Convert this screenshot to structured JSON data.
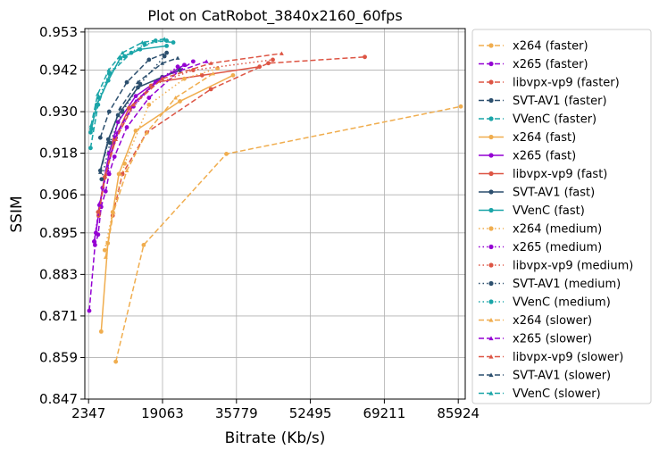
{
  "chart_data": {
    "type": "line",
    "title": "Plot on CatRobot_3840x2160_60fps",
    "xlabel": "Bitrate (Kb/s)",
    "ylabel": "SSIM",
    "xlim": [
      1500,
      87500
    ],
    "ylim": [
      0.847,
      0.954
    ],
    "xticks": [
      2347,
      19063,
      35779,
      52495,
      69211,
      85924
    ],
    "yticks": [
      0.847,
      0.859,
      0.871,
      0.883,
      0.895,
      0.906,
      0.918,
      0.93,
      0.942,
      0.953
    ],
    "grid": true,
    "legend_position": "right, outside plot",
    "series": [
      {
        "name": "x264 (faster)",
        "color": "#f0ad4e",
        "dash": "dashed",
        "marker": "circle",
        "points": [
          [
            8500,
            0.8578
          ],
          [
            14800,
            0.8915
          ],
          [
            33500,
            0.9178
          ],
          [
            86500,
            0.9315
          ]
        ]
      },
      {
        "name": "x265 (faster)",
        "color": "#9400d3",
        "dash": "dashed",
        "marker": "circle",
        "points": [
          [
            2500,
            0.8725
          ],
          [
            3800,
            0.8915
          ],
          [
            4500,
            0.8945
          ],
          [
            5200,
            0.9025
          ],
          [
            6200,
            0.907
          ],
          [
            7000,
            0.912
          ],
          [
            8200,
            0.917
          ],
          [
            11000,
            0.9255
          ],
          [
            16000,
            0.934
          ],
          [
            23000,
            0.942
          ],
          [
            26000,
            0.9445
          ]
        ]
      },
      {
        "name": "libvpx-vp9 (faster)",
        "color": "#dd5544",
        "dash": "dashed",
        "marker": "circle",
        "points": [
          [
            7800,
            0.9
          ],
          [
            10000,
            0.912
          ],
          [
            15500,
            0.924
          ],
          [
            30000,
            0.9365
          ],
          [
            43000,
            0.944
          ],
          [
            64800,
            0.9458
          ]
        ]
      },
      {
        "name": "SVT-AV1 (faster)",
        "color": "#2c4f6e",
        "dash": "dashed",
        "marker": "circle",
        "points": [
          [
            5000,
            0.9225
          ],
          [
            7000,
            0.93
          ],
          [
            11000,
            0.9385
          ],
          [
            16000,
            0.945
          ],
          [
            20000,
            0.947
          ]
        ]
      },
      {
        "name": "VVenC (faster)",
        "color": "#1aa5a8",
        "dash": "dashed",
        "marker": "circle",
        "points": [
          [
            2800,
            0.9195
          ],
          [
            4500,
            0.932
          ],
          [
            7200,
            0.941
          ],
          [
            12000,
            0.947
          ],
          [
            17500,
            0.9505
          ],
          [
            21500,
            0.95
          ]
        ]
      },
      {
        "name": "x264 (fast)",
        "color": "#f0ad4e",
        "dash": "solid",
        "marker": "circle",
        "points": [
          [
            5200,
            0.8665
          ],
          [
            6700,
            0.892
          ],
          [
            9200,
            0.912
          ],
          [
            13000,
            0.9245
          ],
          [
            23000,
            0.933
          ],
          [
            35000,
            0.9405
          ]
        ]
      },
      {
        "name": "x265 (fast)",
        "color": "#9400d3",
        "dash": "solid",
        "marker": "circle",
        "points": [
          [
            4000,
            0.895
          ],
          [
            5500,
            0.908
          ],
          [
            7000,
            0.918
          ],
          [
            9000,
            0.927
          ],
          [
            13000,
            0.9345
          ],
          [
            18000,
            0.939
          ],
          [
            24000,
            0.9435
          ]
        ]
      },
      {
        "name": "libvpx-vp9 (fast)",
        "color": "#dd5544",
        "dash": "solid",
        "marker": "circle",
        "points": [
          [
            4500,
            0.901
          ],
          [
            6000,
            0.911
          ],
          [
            8200,
            0.922
          ],
          [
            11500,
            0.931
          ],
          [
            17500,
            0.9385
          ],
          [
            28000,
            0.9405
          ],
          [
            41000,
            0.943
          ]
        ]
      },
      {
        "name": "SVT-AV1 (fast)",
        "color": "#2c4f6e",
        "dash": "solid",
        "marker": "circle",
        "points": [
          [
            5000,
            0.913
          ],
          [
            6800,
            0.922
          ],
          [
            9000,
            0.929
          ],
          [
            13500,
            0.937
          ],
          [
            19000,
            0.94
          ],
          [
            23000,
            0.942
          ]
        ]
      },
      {
        "name": "VVenC (fast)",
        "color": "#1aa5a8",
        "dash": "solid",
        "marker": "circle",
        "points": [
          [
            2800,
            0.924
          ],
          [
            4200,
            0.932
          ],
          [
            6800,
            0.939
          ],
          [
            9500,
            0.9455
          ],
          [
            14000,
            0.948
          ],
          [
            20000,
            0.949
          ]
        ]
      },
      {
        "name": "x264 (medium)",
        "color": "#f0ad4e",
        "dash": "dotted",
        "marker": "circle",
        "points": [
          [
            6000,
            0.89
          ],
          [
            7800,
            0.901
          ],
          [
            10500,
            0.915
          ],
          [
            16000,
            0.932
          ],
          [
            24000,
            0.9395
          ],
          [
            31500,
            0.9425
          ]
        ]
      },
      {
        "name": "x265 (medium)",
        "color": "#9400d3",
        "dash": "dotted",
        "marker": "circle",
        "points": [
          [
            3600,
            0.8925
          ],
          [
            4800,
            0.903
          ],
          [
            6500,
            0.913
          ],
          [
            8500,
            0.9225
          ],
          [
            12500,
            0.9315
          ],
          [
            17500,
            0.9385
          ],
          [
            22500,
            0.943
          ]
        ]
      },
      {
        "name": "libvpx-vp9 (medium)",
        "color": "#dd5544",
        "dash": "dotted",
        "marker": "circle",
        "points": [
          [
            4600,
            0.9
          ],
          [
            6000,
            0.911
          ],
          [
            8000,
            0.921
          ],
          [
            11500,
            0.931
          ],
          [
            16500,
            0.9375
          ],
          [
            26000,
            0.942
          ],
          [
            44000,
            0.945
          ]
        ]
      },
      {
        "name": "SVT-AV1 (medium)",
        "color": "#2c4f6e",
        "dash": "dotted",
        "marker": "circle",
        "points": [
          [
            5300,
            0.9105
          ],
          [
            7200,
            0.921
          ],
          [
            10000,
            0.93
          ],
          [
            14000,
            0.938
          ],
          [
            19500,
            0.946
          ]
        ]
      },
      {
        "name": "VVenC (medium)",
        "color": "#1aa5a8",
        "dash": "dotted",
        "marker": "circle",
        "points": [
          [
            3000,
            0.925
          ],
          [
            4700,
            0.934
          ],
          [
            7000,
            0.941
          ],
          [
            10500,
            0.946
          ],
          [
            15000,
            0.9495
          ],
          [
            20000,
            0.9505
          ]
        ]
      },
      {
        "name": "x264 (slower)",
        "color": "#f0ad4e",
        "dash": "dashed",
        "marker": "triangle",
        "points": [
          [
            6200,
            0.888
          ],
          [
            8000,
            0.901
          ],
          [
            11000,
            0.913
          ],
          [
            15500,
            0.924
          ],
          [
            22000,
            0.934
          ],
          [
            30500,
            0.941
          ]
        ]
      },
      {
        "name": "x265 (slower)",
        "color": "#9400d3",
        "dash": "dashed",
        "marker": "triangle",
        "points": [
          [
            3700,
            0.893
          ],
          [
            5000,
            0.904
          ],
          [
            6600,
            0.914
          ],
          [
            8800,
            0.924
          ],
          [
            13000,
            0.933
          ],
          [
            19000,
            0.94
          ],
          [
            29000,
            0.9445
          ]
        ]
      },
      {
        "name": "libvpx-vp9 (slower)",
        "color": "#dd5544",
        "dash": "dashed",
        "marker": "triangle",
        "points": [
          [
            4700,
            0.901
          ],
          [
            6200,
            0.912
          ],
          [
            8500,
            0.922
          ],
          [
            12500,
            0.932
          ],
          [
            19000,
            0.9395
          ],
          [
            30000,
            0.944
          ],
          [
            46000,
            0.9468
          ]
        ]
      },
      {
        "name": "SVT-AV1 (slower)",
        "color": "#2c4f6e",
        "dash": "dashed",
        "marker": "triangle",
        "points": [
          [
            5000,
            0.9125
          ],
          [
            6800,
            0.9215
          ],
          [
            9500,
            0.931
          ],
          [
            13500,
            0.9385
          ],
          [
            19000,
            0.944
          ],
          [
            22500,
            0.9455
          ]
        ]
      },
      {
        "name": "VVenC (slower)",
        "color": "#1aa5a8",
        "dash": "dashed",
        "marker": "triangle",
        "points": [
          [
            2900,
            0.926
          ],
          [
            4400,
            0.935
          ],
          [
            6900,
            0.942
          ],
          [
            10000,
            0.947
          ],
          [
            14500,
            0.95
          ],
          [
            19500,
            0.951
          ]
        ]
      }
    ]
  }
}
